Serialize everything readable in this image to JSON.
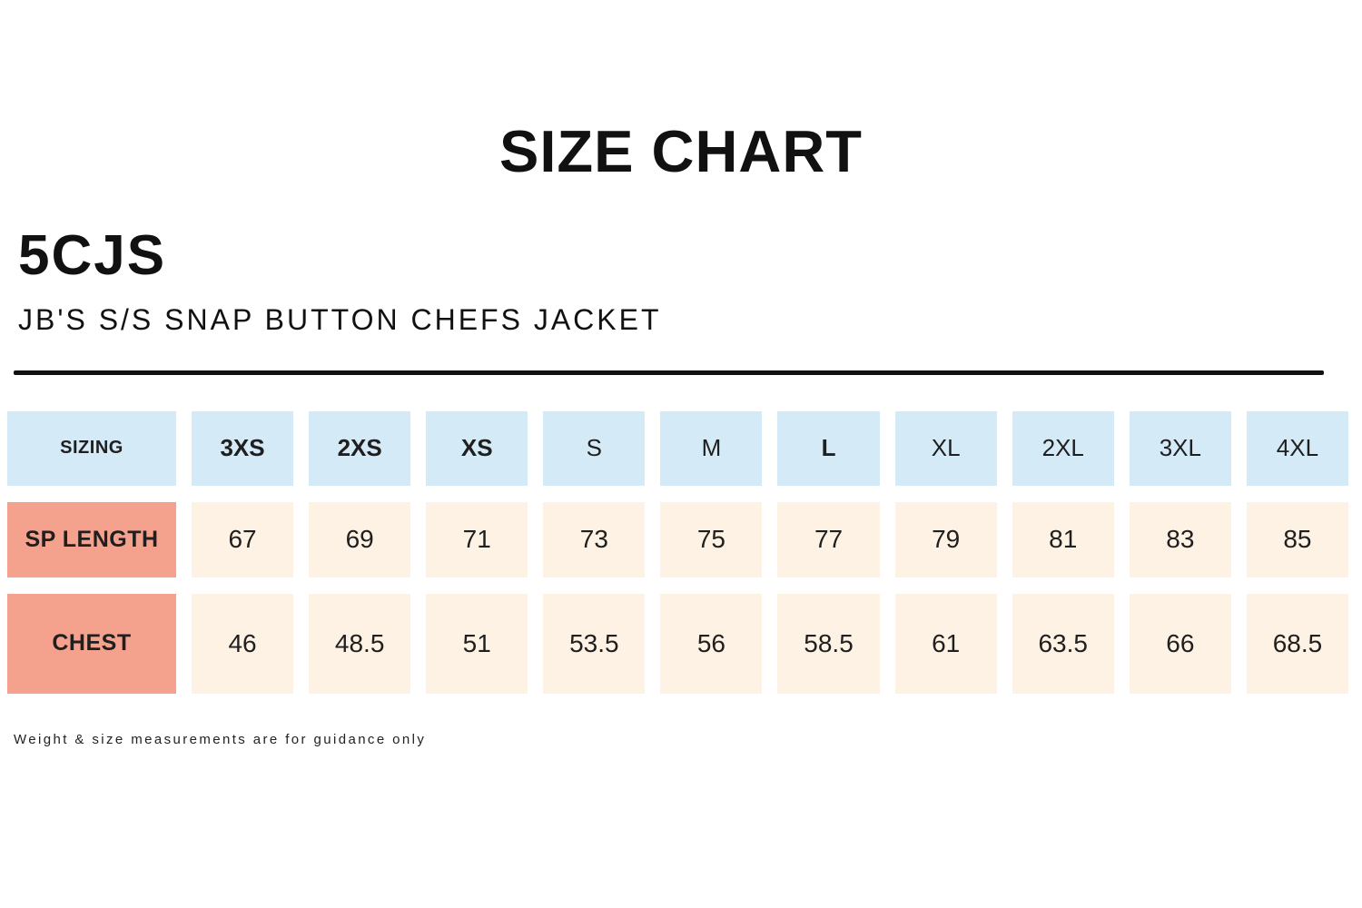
{
  "header": {
    "title": "SIZE CHART"
  },
  "product": {
    "code": "5CJS",
    "name": "JB'S S/S SNAP BUTTON CHEFS JACKET"
  },
  "colors": {
    "header_cell_blue": "#d4eaf7",
    "label_cell_salmon": "#f4a28d",
    "value_cell_cream": "#fdf2e3",
    "text": "#1b1b1b",
    "divider": "#111111"
  },
  "table": {
    "sizing_label": "SIZING",
    "sizes": [
      {
        "label": "3XS",
        "bold": true
      },
      {
        "label": "2XS",
        "bold": true
      },
      {
        "label": "XS",
        "bold": true
      },
      {
        "label": "S",
        "bold": false
      },
      {
        "label": "M",
        "bold": false
      },
      {
        "label": "L",
        "bold": true
      },
      {
        "label": "XL",
        "bold": false
      },
      {
        "label": "2XL",
        "bold": false
      },
      {
        "label": "3XL",
        "bold": false
      },
      {
        "label": "4XL",
        "bold": false
      }
    ],
    "rows": [
      {
        "label": "SP LENGTH",
        "values": [
          "67",
          "69",
          "71",
          "73",
          "75",
          "77",
          "79",
          "81",
          "83",
          "85"
        ]
      },
      {
        "label": "CHEST",
        "values": [
          "46",
          "48.5",
          "51",
          "53.5",
          "56",
          "58.5",
          "61",
          "63.5",
          "66",
          "68.5"
        ]
      }
    ]
  },
  "footnote": "Weight & size measurements are for guidance only",
  "chart_data": {
    "type": "table",
    "title": "SIZE CHART",
    "columns": [
      "SIZING",
      "3XS",
      "2XS",
      "XS",
      "S",
      "M",
      "L",
      "XL",
      "2XL",
      "3XL",
      "4XL"
    ],
    "rows": [
      {
        "label": "SP LENGTH",
        "values": [
          67,
          69,
          71,
          73,
          75,
          77,
          79,
          81,
          83,
          85
        ]
      },
      {
        "label": "CHEST",
        "values": [
          46,
          48.5,
          51,
          53.5,
          56,
          58.5,
          61,
          63.5,
          66,
          68.5
        ]
      }
    ]
  }
}
